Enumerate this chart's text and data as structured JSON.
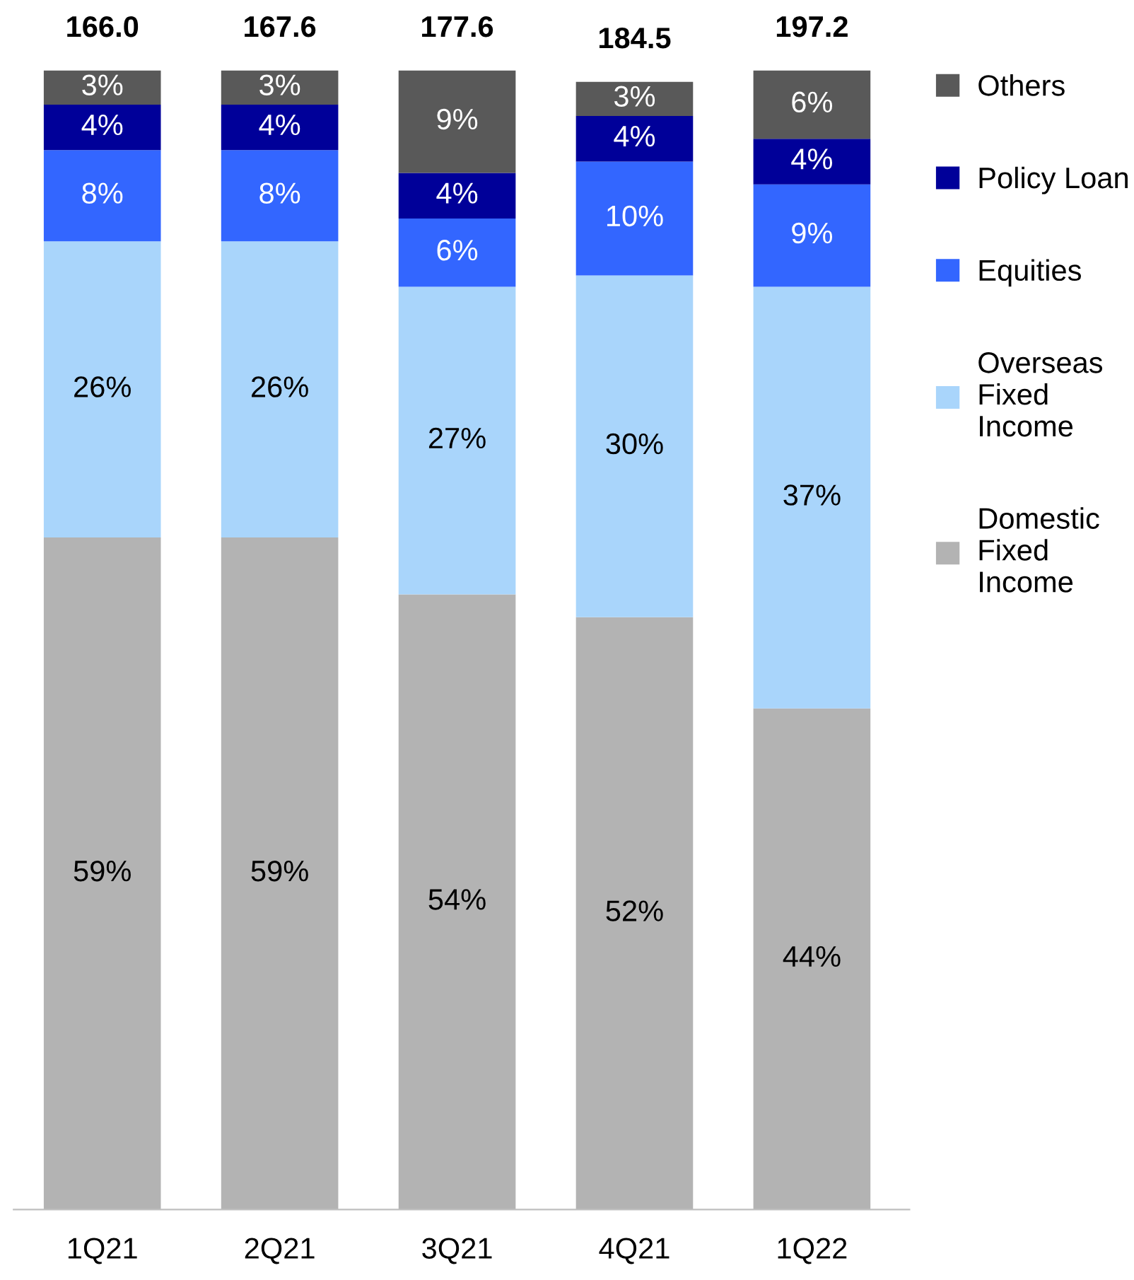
{
  "chart_data": {
    "type": "bar",
    "stacked": true,
    "legend": "right",
    "grid": false,
    "categories": [
      "1Q21",
      "2Q21",
      "3Q21",
      "4Q21",
      "1Q22"
    ],
    "series": [
      {
        "name": "Domestic\nFixed\nIncome",
        "color": "#b3b3b3",
        "values": [
          59,
          59,
          54,
          52,
          44
        ],
        "value_labels": [
          "59%",
          "59%",
          "54%",
          "52%",
          "44%"
        ]
      },
      {
        "name": "Overseas\nFixed\nIncome",
        "color": "#a9d5fb",
        "values": [
          26,
          26,
          27,
          30,
          37
        ],
        "value_labels": [
          "26%",
          "26%",
          "27%",
          "30%",
          "37%"
        ]
      },
      {
        "name": "Equities",
        "color": "#3366ff",
        "values": [
          8,
          8,
          6,
          10,
          9
        ],
        "value_labels": [
          "8%",
          "8%",
          "6%",
          "10%",
          "9%"
        ]
      },
      {
        "name": "Policy Loan",
        "color": "#000099",
        "values": [
          4,
          4,
          4,
          4,
          4
        ],
        "value_labels": [
          "4%",
          "4%",
          "4%",
          "4%",
          "4%"
        ]
      },
      {
        "name": "Others",
        "color": "#595959",
        "values": [
          3,
          3,
          9,
          3,
          6
        ],
        "value_labels": [
          "3%",
          "3%",
          "9%",
          "3%",
          "6%"
        ]
      }
    ],
    "annotations": [
      {
        "text": "166.0",
        "x": "1Q21",
        "y": 100
      },
      {
        "text": "167.6",
        "x": "2Q21",
        "y": 100
      },
      {
        "text": "177.6",
        "x": "3Q21",
        "y": 100
      },
      {
        "text": "184.5",
        "x": "4Q21",
        "y": 99
      },
      {
        "text": "197.2",
        "x": "1Q22",
        "y": 100
      }
    ]
  }
}
